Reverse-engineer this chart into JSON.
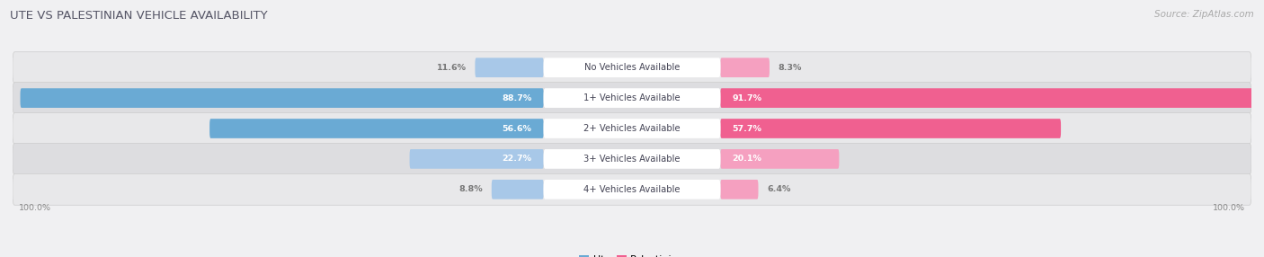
{
  "title": "UTE VS PALESTINIAN VEHICLE AVAILABILITY",
  "source": "Source: ZipAtlas.com",
  "categories": [
    "No Vehicles Available",
    "1+ Vehicles Available",
    "2+ Vehicles Available",
    "3+ Vehicles Available",
    "4+ Vehicles Available"
  ],
  "ute_values": [
    11.6,
    88.7,
    56.6,
    22.7,
    8.8
  ],
  "palestinian_values": [
    8.3,
    91.7,
    57.7,
    20.1,
    6.4
  ],
  "ute_color_dark": "#6aaad4",
  "ute_color_light": "#a8c8e8",
  "palestinian_color_dark": "#f06090",
  "palestinian_color_light": "#f5a0c0",
  "row_colors": [
    "#e8e8ea",
    "#dddde0",
    "#e8e8ea",
    "#dddde0",
    "#e8e8ea"
  ],
  "title_color": "#555566",
  "source_color": "#aaaaaa",
  "label_inside_color": "white",
  "label_outside_color": "#777777",
  "cat_label_color": "#444455",
  "legend_ute_color": "#6aaad4",
  "legend_pal_color": "#f06090"
}
